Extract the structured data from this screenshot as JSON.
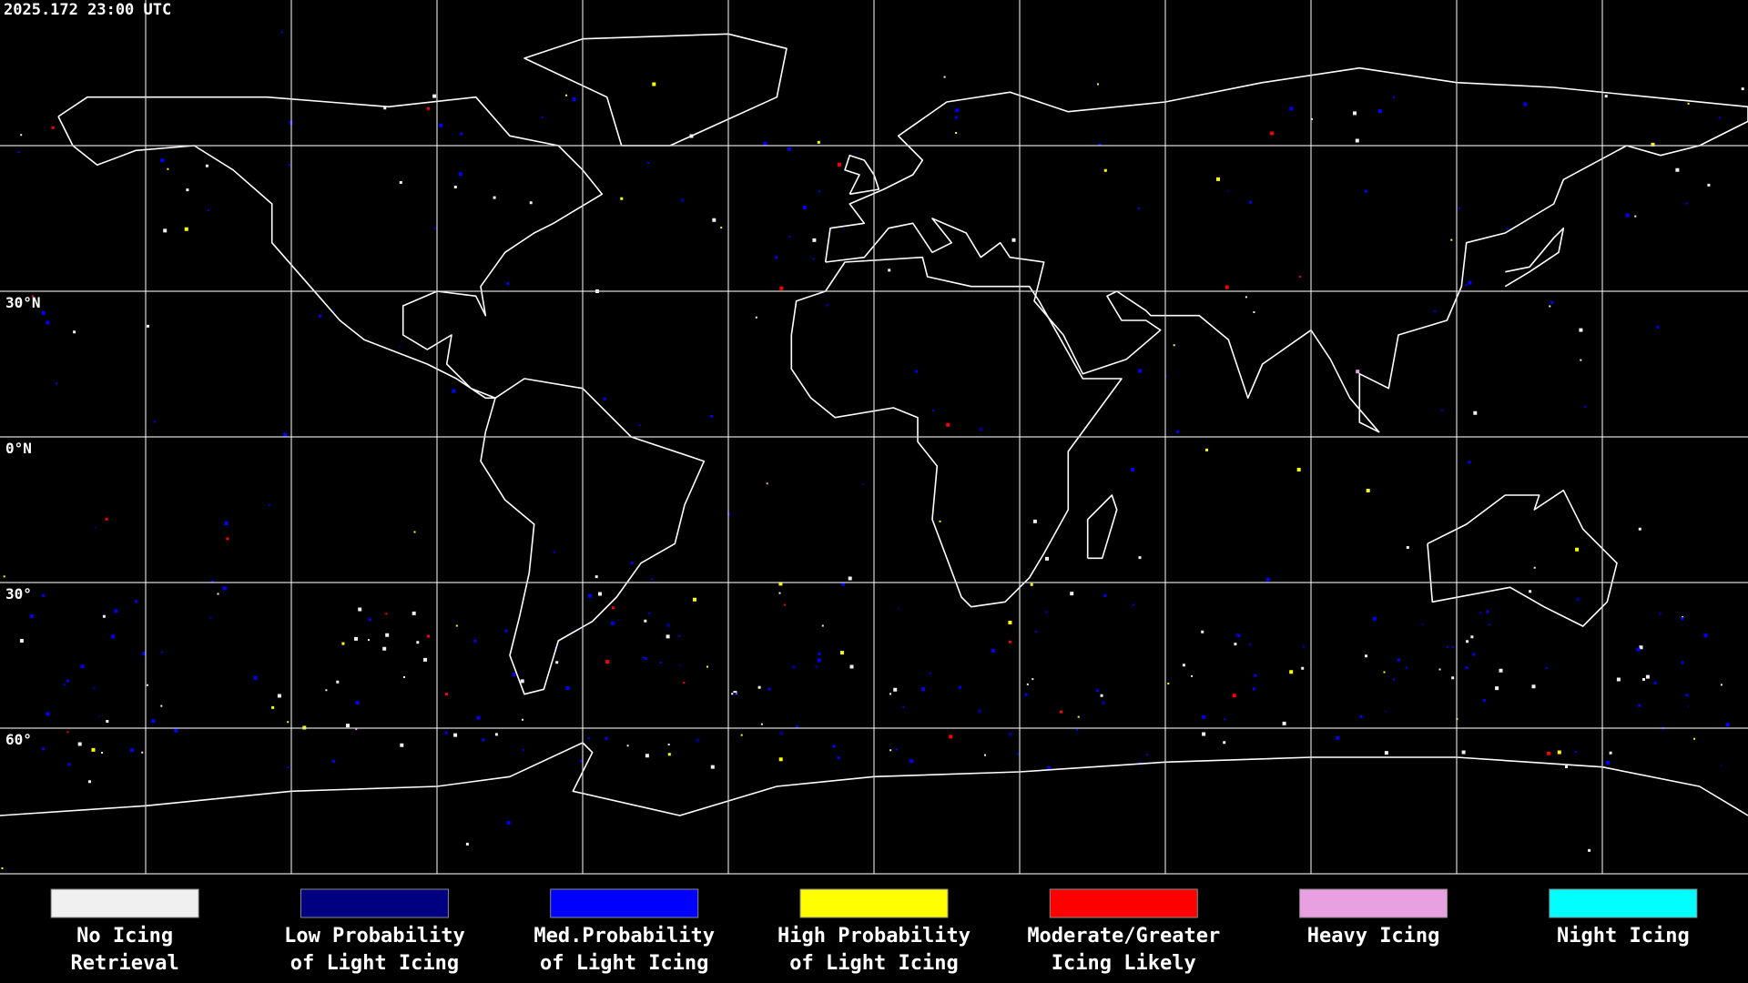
{
  "header": {
    "timestamp": "2025.172 23:00 UTC"
  },
  "latitude_labels": [
    "30°N",
    "0°N",
    "30°",
    "60°"
  ],
  "legend": {
    "items": [
      {
        "label_lines": [
          "No Icing",
          "Retrieval"
        ],
        "color": "#f0f0f0"
      },
      {
        "label_lines": [
          "Low Probability",
          "of Light Icing"
        ],
        "color": "#000080"
      },
      {
        "label_lines": [
          "Med.Probability",
          "of Light Icing"
        ],
        "color": "#0000ff"
      },
      {
        "label_lines": [
          "High Probability",
          "of Light Icing"
        ],
        "color": "#ffff00"
      },
      {
        "label_lines": [
          "Moderate/Greater",
          "Icing Likely"
        ],
        "color": "#ff0000"
      },
      {
        "label_lines": [
          "Heavy Icing"
        ],
        "color": "#e8a0e0"
      },
      {
        "label_lines": [
          "Night Icing"
        ],
        "color": "#00ffff"
      }
    ]
  }
}
